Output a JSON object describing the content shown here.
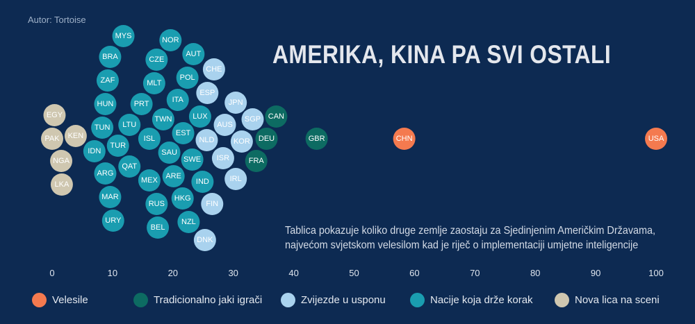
{
  "author": "Autor: Tortoise",
  "title": "AMERIKA, KINA PA SVI OSTALI",
  "note_lines": [
    "Tablica pokazuje koliko druge zemlje zaostaju za Sjedinjenim Američkim Državama,",
    "najvećom svjetskom velesilom kad je riječ o implementaciji umjetne inteligencije"
  ],
  "legend": [
    {
      "label": "Velesile",
      "color": "#f47a4f"
    },
    {
      "label": "Tradicionalno jaki igrači",
      "color": "#0d6b62"
    },
    {
      "label": "Zvijezde u usponu",
      "color": "#a9d2ee"
    },
    {
      "label": "Nacije koja drže korak",
      "color": "#1a9db0"
    },
    {
      "label": "Nova lica na sceni",
      "color": "#cfc7b0"
    }
  ],
  "chart_data": {
    "type": "scatter",
    "title": "AMERIKA, KINA PA SVI OSTALI",
    "x_ticks": [
      0,
      10,
      20,
      30,
      40,
      50,
      60,
      70,
      80,
      90,
      100
    ],
    "xlim": [
      0,
      100
    ],
    "series": [
      {
        "name": "Velesile",
        "points": [
          [
            "USA",
            100
          ],
          [
            "CHN",
            58.3
          ]
        ]
      },
      {
        "name": "Tradicionalno jaki igrači",
        "points": [
          [
            "GBR",
            43.8
          ],
          [
            "CAN",
            37.1
          ],
          [
            "DEU",
            35.5
          ],
          [
            "FRA",
            33.8
          ]
        ]
      },
      {
        "name": "Zvijezde u usponu",
        "points": [
          [
            "DNK",
            25.3
          ],
          [
            "CHE",
            26.8
          ],
          [
            "JPN",
            30.4
          ],
          [
            "ESP",
            25.7
          ],
          [
            "KOR",
            31.4
          ],
          [
            "ISR",
            28.3
          ],
          [
            "NLD",
            25.6
          ],
          [
            "IRL",
            30.4
          ],
          [
            "SGP",
            33.2
          ],
          [
            "AUS",
            28.6
          ],
          [
            "FIN",
            26.5
          ]
        ]
      },
      {
        "name": "Nacije koja drže korak",
        "points": [
          [
            "TUN",
            8.3
          ],
          [
            "ARE",
            20.1
          ],
          [
            "ISL",
            16.1
          ],
          [
            "AUT",
            23.4
          ],
          [
            "ZAF",
            9.2
          ],
          [
            "RUS",
            17.3
          ],
          [
            "URY",
            10.1
          ],
          [
            "ITA",
            20.8
          ],
          [
            "MYS",
            11.8
          ],
          [
            "TWN",
            18.4
          ],
          [
            "NZL",
            22.6
          ],
          [
            "IDN",
            7.0
          ],
          [
            "PRT",
            14.8
          ],
          [
            "MAR",
            9.6
          ],
          [
            "NOR",
            19.6
          ],
          [
            "SWE",
            23.2
          ],
          [
            "LTU",
            12.8
          ],
          [
            "HUN",
            8.8
          ],
          [
            "BEL",
            17.5
          ],
          [
            "EST",
            21.7
          ],
          [
            "QAT",
            12.8
          ],
          [
            "SAU",
            19.4
          ],
          [
            "IND",
            24.9
          ],
          [
            "TUR",
            10.9
          ],
          [
            "MLT",
            16.9
          ],
          [
            "POL",
            22.4
          ],
          [
            "BRA",
            9.6
          ],
          [
            "CZE",
            17.3
          ],
          [
            "LUX",
            24.5
          ],
          [
            "ARG",
            8.8
          ],
          [
            "MEX",
            16.1
          ],
          [
            "HKG",
            21.6
          ]
        ]
      },
      {
        "name": "Nova lica na sceni",
        "points": [
          [
            "PAK",
            0
          ],
          [
            "LKA",
            1.6
          ],
          [
            "KEN",
            3.9
          ],
          [
            "NGA",
            1.5
          ],
          [
            "EGY",
            0.4
          ]
        ]
      }
    ]
  }
}
